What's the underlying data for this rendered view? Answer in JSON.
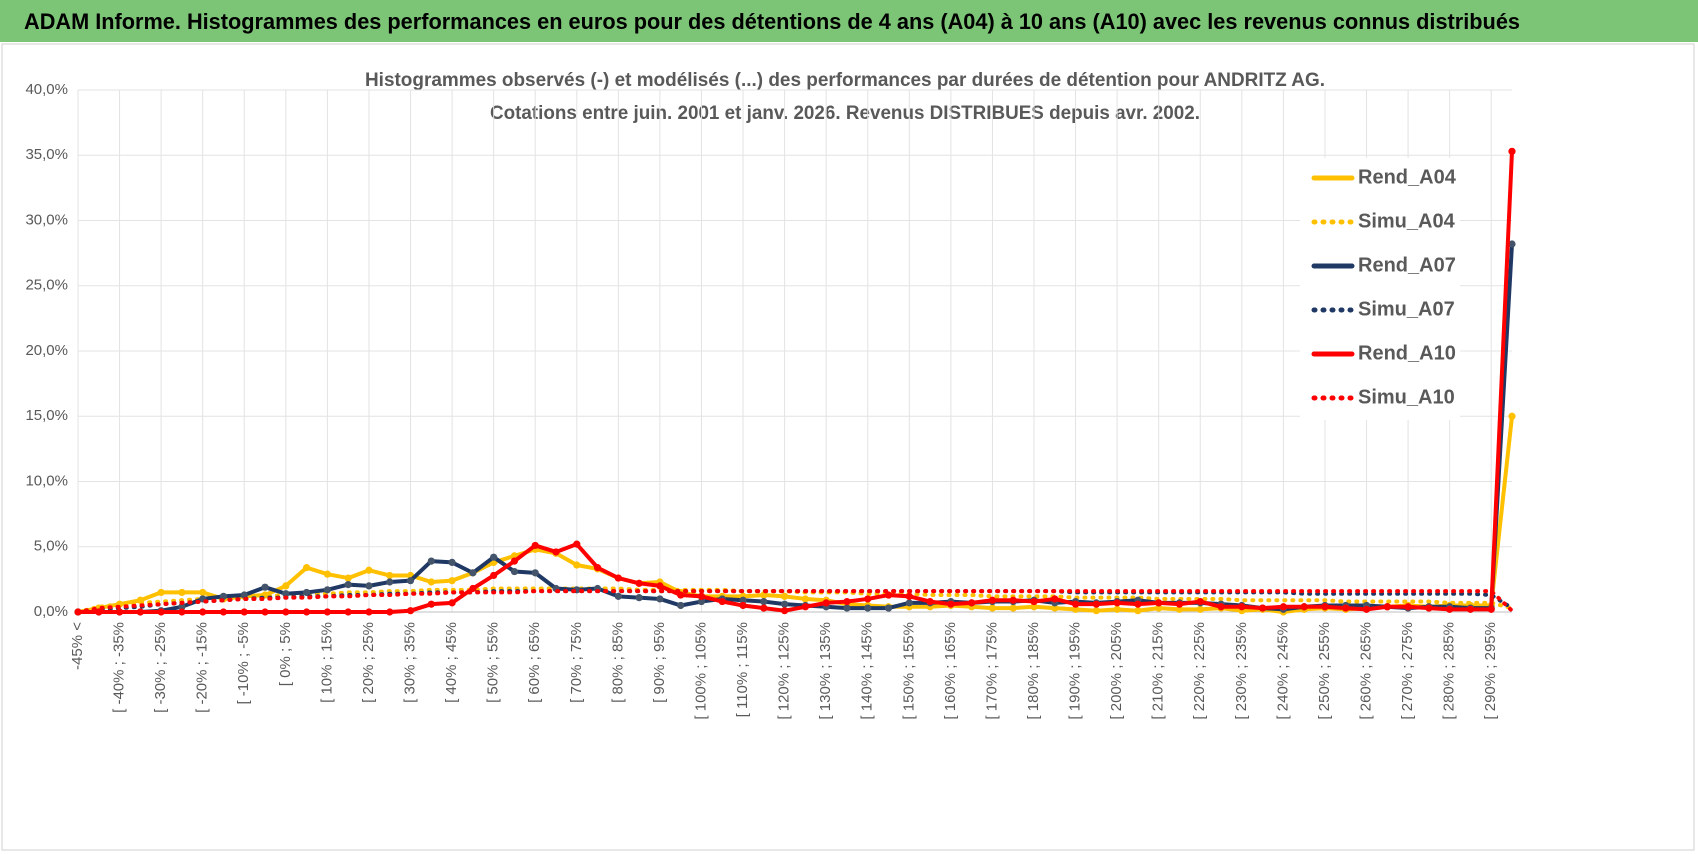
{
  "header": {
    "title": "ADAM Informe. Histogrammes des performances en euros pour des détentions de 4 ans (A04) à 10 ans (A10) avec les revenus connus distribués"
  },
  "chart_data": {
    "type": "line",
    "title": "Histogrammes observés (-) et modélisés (...) des performances par durées de détention pour ANDRITZ AG.",
    "subtitle": "Cotations entre juin. 2001 et janv. 2026. Revenus DISTRIBUES depuis avr. 2002.",
    "categories": [
      "-45% <",
      null,
      "[ -40% ; -35%",
      null,
      "[ -30% ; -25%",
      null,
      "[ -20% ; -15%",
      null,
      "[ -10% ; -5%",
      null,
      "[ 0% ; 5%",
      null,
      "[ 10% ; 15%",
      null,
      "[ 20% ; 25%",
      null,
      "[ 30% ; 35%",
      null,
      "[ 40% ; 45%",
      null,
      "[ 50% ; 55%",
      null,
      "[ 60% ; 65%",
      null,
      "[ 70% ; 75%",
      null,
      "[ 80% ; 85%",
      null,
      "[ 90% ; 95%",
      null,
      "[ 100% ; 105%",
      null,
      "[ 110% ; 115%",
      null,
      "[ 120% ; 125%",
      null,
      "[ 130% ; 135%",
      null,
      "[ 140% ; 145%",
      null,
      "[ 150% ; 155%",
      null,
      "[ 160% ; 165%",
      null,
      "[ 170% ; 175%",
      null,
      "[ 180% ; 185%",
      null,
      "[ 190% ; 195%",
      null,
      "[ 200% ; 205%",
      null,
      "[ 210% ; 215%",
      null,
      "[ 220% ; 225%",
      null,
      "[ 230% ; 235%",
      null,
      "[ 240% ; 245%",
      null,
      "[ 250% ; 255%",
      null,
      "[ 260% ; 265%",
      null,
      "[ 270% ; 275%",
      null,
      "[ 280% ; 285%",
      null,
      "[ 290% ; 295%",
      null
    ],
    "series": [
      {
        "name": "Rend_A04",
        "color": "#FFC000",
        "style": "solid",
        "marker": true,
        "values": [
          0,
          0.3,
          0.6,
          0.9,
          1.5,
          1.5,
          1.5,
          1.0,
          1.2,
          1.3,
          2.0,
          3.4,
          2.9,
          2.6,
          3.2,
          2.8,
          2.8,
          2.3,
          2.4,
          3.0,
          3.8,
          4.3,
          4.8,
          4.5,
          3.6,
          3.3,
          2.6,
          2.2,
          2.3,
          1.5,
          1.2,
          1.2,
          1.2,
          1.3,
          1.2,
          1.0,
          0.9,
          0.6,
          0.5,
          0.4,
          0.4,
          0.4,
          0.5,
          0.4,
          0.3,
          0.3,
          0.4,
          0.3,
          0.2,
          0.1,
          0.2,
          0.1,
          0.3,
          0.2,
          0.2,
          0.3,
          0.1,
          0.2,
          0.0,
          0.2,
          0.3,
          0.2,
          0.3,
          0.4,
          0.5,
          0.4,
          0.5,
          0.5,
          0.5,
          15.0
        ]
      },
      {
        "name": "Simu_A04",
        "color": "#FFC000",
        "style": "dotted",
        "marker": false,
        "values": [
          0,
          0.4,
          0.6,
          0.7,
          0.8,
          0.9,
          1.0,
          1.1,
          1.2,
          1.2,
          1.3,
          1.4,
          1.4,
          1.5,
          1.5,
          1.6,
          1.6,
          1.7,
          1.7,
          1.7,
          1.8,
          1.8,
          1.8,
          1.8,
          1.8,
          1.8,
          1.8,
          1.7,
          1.7,
          1.7,
          1.7,
          1.7,
          1.6,
          1.6,
          1.6,
          1.5,
          1.5,
          1.5,
          1.4,
          1.4,
          1.4,
          1.3,
          1.3,
          1.3,
          1.2,
          1.2,
          1.2,
          1.2,
          1.1,
          1.1,
          1.1,
          1.1,
          1.0,
          1.0,
          1.0,
          1.0,
          0.9,
          0.9,
          0.9,
          0.9,
          0.9,
          0.8,
          0.8,
          0.8,
          0.8,
          0.8,
          0.7,
          0.7,
          0.7,
          0.3
        ]
      },
      {
        "name": "Rend_A07",
        "color": "#1F3864",
        "style": "solid",
        "marker": true,
        "values": [
          0,
          0,
          0,
          0,
          0.1,
          0.4,
          1.0,
          1.2,
          1.3,
          1.9,
          1.4,
          1.5,
          1.7,
          2.1,
          2.0,
          2.3,
          2.4,
          3.9,
          3.8,
          3.0,
          4.2,
          3.1,
          3.0,
          1.8,
          1.7,
          1.8,
          1.2,
          1.1,
          1.0,
          0.5,
          0.8,
          1.0,
          0.9,
          0.8,
          0.6,
          0.5,
          0.4,
          0.3,
          0.3,
          0.3,
          0.7,
          0.7,
          0.8,
          0.7,
          0.8,
          0.8,
          0.9,
          0.7,
          0.8,
          0.7,
          0.8,
          0.9,
          0.7,
          0.7,
          0.7,
          0.6,
          0.5,
          0.3,
          0.2,
          0.4,
          0.5,
          0.5,
          0.5,
          0.4,
          0.3,
          0.4,
          0.4,
          0.3,
          0.3,
          28.2
        ]
      },
      {
        "name": "Simu_A07",
        "color": "#1F3864",
        "style": "dotted",
        "marker": false,
        "values": [
          0,
          0.2,
          0.3,
          0.4,
          0.6,
          0.7,
          0.8,
          0.9,
          1.0,
          1.1,
          1.1,
          1.2,
          1.2,
          1.3,
          1.3,
          1.4,
          1.4,
          1.5,
          1.5,
          1.5,
          1.6,
          1.6,
          1.6,
          1.6,
          1.6,
          1.6,
          1.6,
          1.6,
          1.6,
          1.6,
          1.6,
          1.6,
          1.6,
          1.6,
          1.6,
          1.6,
          1.6,
          1.6,
          1.6,
          1.6,
          1.6,
          1.6,
          1.6,
          1.6,
          1.6,
          1.6,
          1.6,
          1.6,
          1.5,
          1.5,
          1.5,
          1.5,
          1.5,
          1.5,
          1.5,
          1.5,
          1.5,
          1.5,
          1.5,
          1.4,
          1.4,
          1.4,
          1.4,
          1.4,
          1.4,
          1.4,
          1.4,
          1.4,
          1.3,
          0.3
        ]
      },
      {
        "name": "Rend_A10",
        "color": "#FF0000",
        "style": "solid",
        "marker": true,
        "values": [
          0,
          0,
          0,
          0,
          0,
          0,
          0,
          0,
          0,
          0,
          0,
          0,
          0,
          0,
          0,
          0,
          0.1,
          0.6,
          0.7,
          1.8,
          2.8,
          3.9,
          5.1,
          4.6,
          5.2,
          3.4,
          2.6,
          2.2,
          2.0,
          1.3,
          1.2,
          0.8,
          0.5,
          0.3,
          0.1,
          0.4,
          0.7,
          0.8,
          1.0,
          1.3,
          1.2,
          0.8,
          0.6,
          0.7,
          0.9,
          0.9,
          0.8,
          1.0,
          0.6,
          0.6,
          0.7,
          0.6,
          0.7,
          0.6,
          0.8,
          0.4,
          0.4,
          0.3,
          0.4,
          0.4,
          0.4,
          0.3,
          0.2,
          0.4,
          0.4,
          0.3,
          0.2,
          0.2,
          0.2,
          35.3
        ]
      },
      {
        "name": "Simu_A10",
        "color": "#FF0000",
        "style": "dotted",
        "marker": false,
        "values": [
          0,
          0.3,
          0.4,
          0.5,
          0.6,
          0.7,
          0.8,
          0.9,
          1.0,
          1.0,
          1.1,
          1.1,
          1.2,
          1.2,
          1.3,
          1.3,
          1.4,
          1.4,
          1.5,
          1.5,
          1.5,
          1.5,
          1.6,
          1.6,
          1.6,
          1.6,
          1.6,
          1.6,
          1.6,
          1.6,
          1.6,
          1.6,
          1.6,
          1.6,
          1.6,
          1.6,
          1.6,
          1.6,
          1.6,
          1.6,
          1.6,
          1.6,
          1.6,
          1.6,
          1.6,
          1.6,
          1.6,
          1.6,
          1.6,
          1.6,
          1.6,
          1.6,
          1.6,
          1.6,
          1.6,
          1.6,
          1.6,
          1.6,
          1.6,
          1.6,
          1.6,
          1.6,
          1.6,
          1.6,
          1.6,
          1.6,
          1.6,
          1.6,
          1.6,
          0.1
        ]
      }
    ],
    "ylim": [
      0,
      40
    ],
    "yticks": [
      {
        "value": 0,
        "label": "0,0%"
      },
      {
        "value": 5,
        "label": "5,0%"
      },
      {
        "value": 10,
        "label": "10,0%"
      },
      {
        "value": 15,
        "label": "15,0%"
      },
      {
        "value": 20,
        "label": "20,0%"
      },
      {
        "value": 25,
        "label": "25,0%"
      },
      {
        "value": 30,
        "label": "30,0%"
      },
      {
        "value": 35,
        "label": "35,0%"
      },
      {
        "value": 40,
        "label": "40,0%"
      }
    ],
    "grid": true,
    "legend": "right"
  }
}
